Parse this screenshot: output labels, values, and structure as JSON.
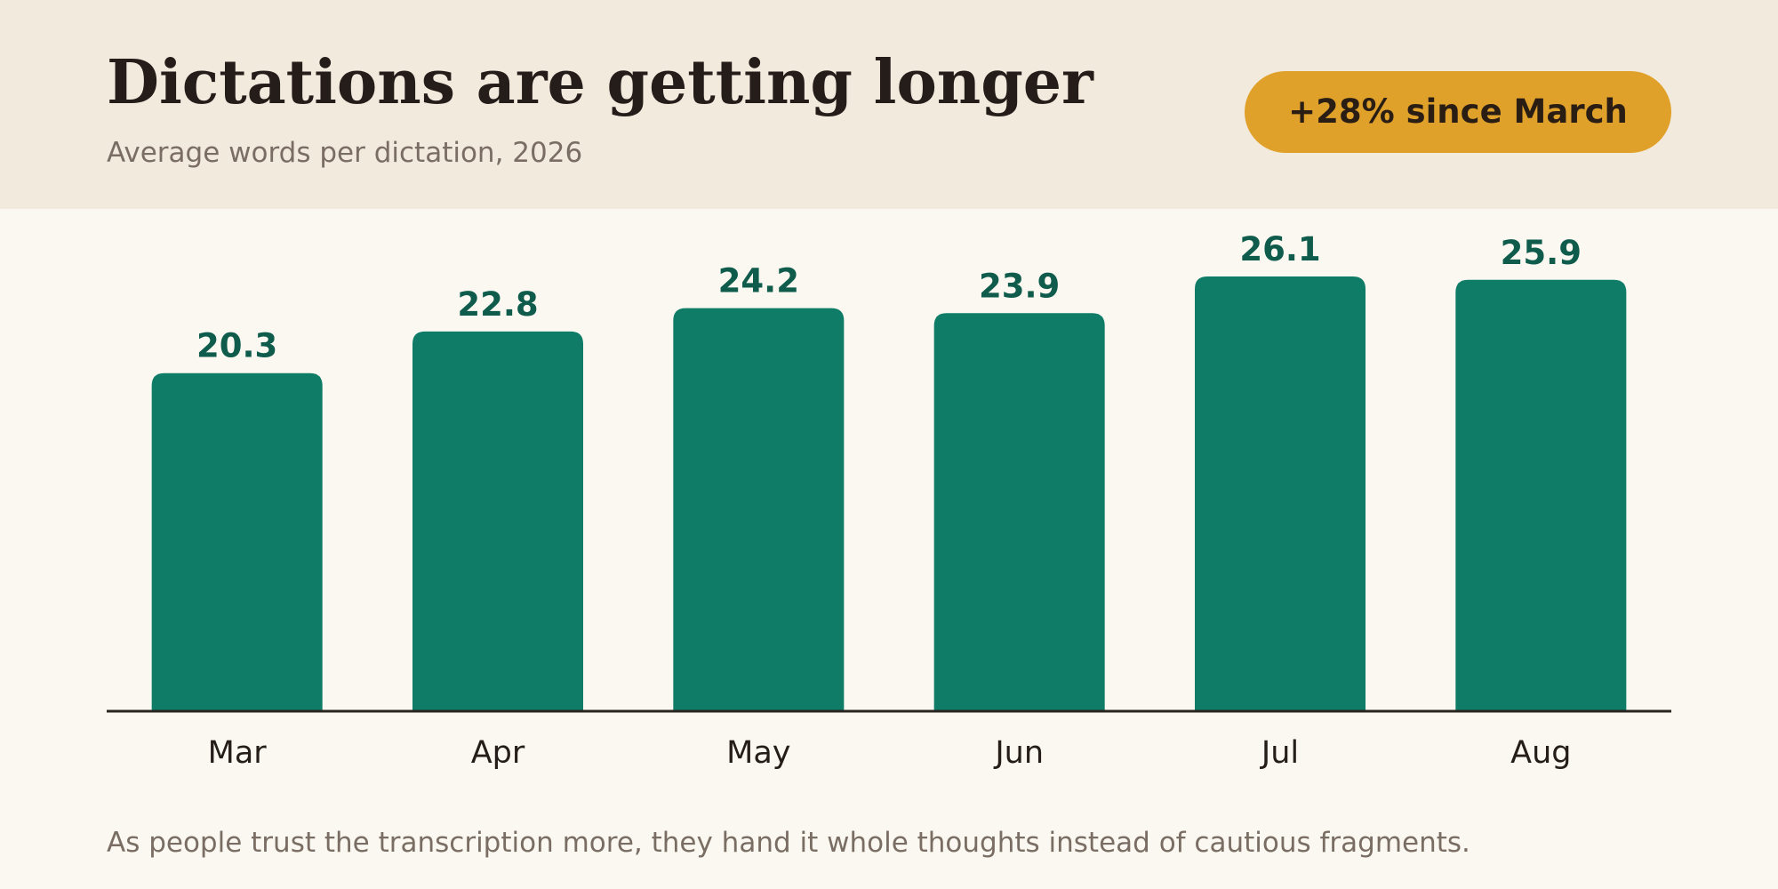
{
  "header": {
    "title": "Dictations are getting longer",
    "subtitle": "Average words per dictation, 2026",
    "badge": "+28% since March"
  },
  "caption": "As people trust the transcription more, they hand it whole thoughts instead of cautious fragments.",
  "colors": {
    "bar": "#0e7c67",
    "value_label": "#0f5c4c",
    "badge_bg": "#e0a12b",
    "header_bg": "#f3eade",
    "page_bg": "#faf8f1"
  },
  "chart_data": {
    "type": "bar",
    "title": "Dictations are getting longer",
    "subtitle": "Average words per dictation, 2026",
    "categories": [
      "Mar",
      "Apr",
      "May",
      "Jun",
      "Jul",
      "Aug"
    ],
    "values": [
      20.3,
      22.8,
      24.2,
      23.9,
      26.1,
      25.9
    ],
    "xlabel": "",
    "ylabel": "",
    "ylim": [
      0,
      30
    ],
    "grid": false,
    "legend": "none",
    "data_labels": true
  }
}
